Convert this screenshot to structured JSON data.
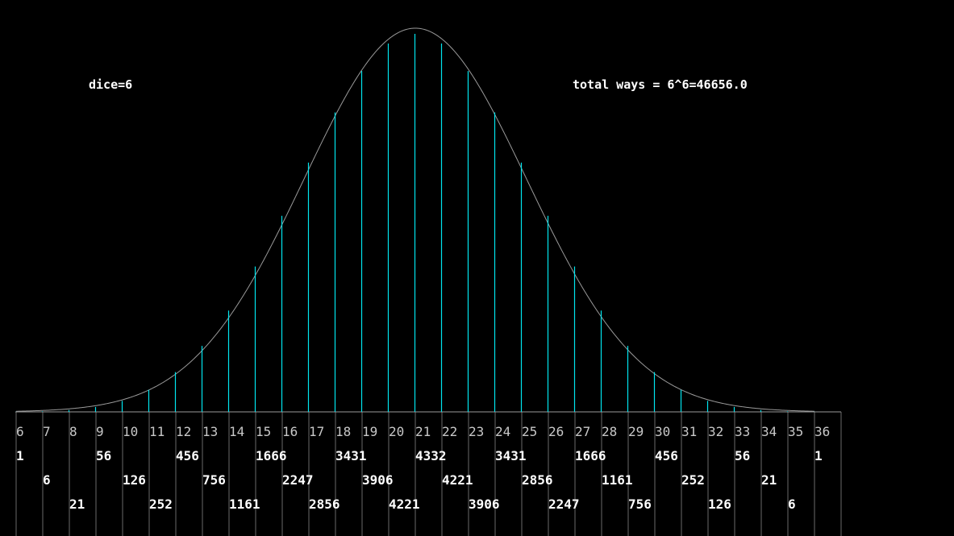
{
  "header": {
    "dice_label": "dice=6",
    "total_label": "total ways = 6^6=46656.0"
  },
  "colors": {
    "background": "#000000",
    "bar": "#00e5ee",
    "curve": "#9a9a9a",
    "axis": "#9a9a9a",
    "grid": "#6a6a6a",
    "sum_text": "#c8c8c8",
    "count_text": "#ffffff"
  },
  "chart_data": {
    "type": "bar",
    "title": "",
    "xlabel": "",
    "ylabel": "",
    "categories": [
      6,
      7,
      8,
      9,
      10,
      11,
      12,
      13,
      14,
      15,
      16,
      17,
      18,
      19,
      20,
      21,
      22,
      23,
      24,
      25,
      26,
      27,
      28,
      29,
      30,
      31,
      32,
      33,
      34,
      35,
      36
    ],
    "values": [
      1,
      6,
      21,
      56,
      126,
      252,
      456,
      756,
      1161,
      1666,
      2247,
      2856,
      3431,
      3906,
      4221,
      4332,
      4221,
      3906,
      3431,
      2856,
      2247,
      1666,
      1161,
      756,
      456,
      252,
      126,
      56,
      21,
      6,
      1
    ],
    "ylim": [
      0,
      4332
    ],
    "curve": "normal-fit",
    "grid": true,
    "legend": "none"
  }
}
